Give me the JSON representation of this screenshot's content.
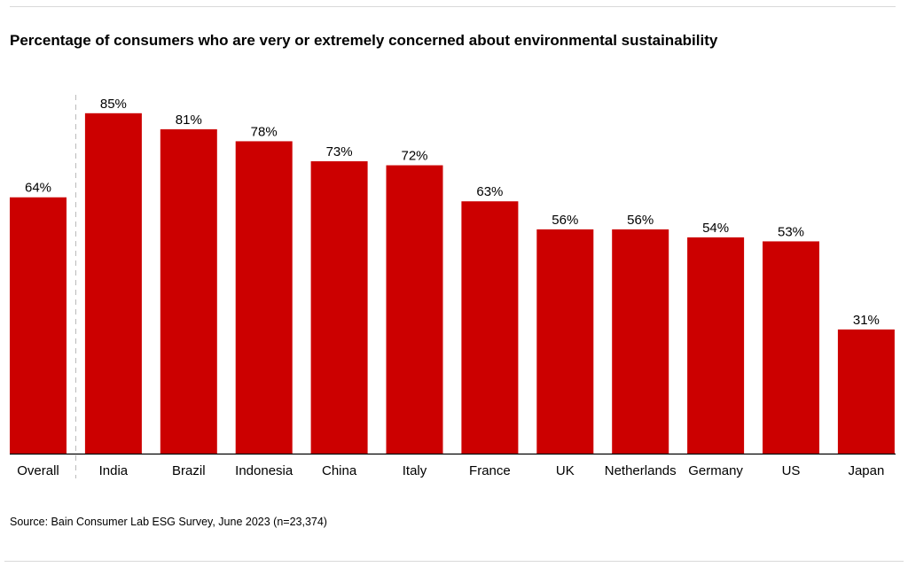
{
  "chart_data": {
    "type": "bar",
    "title": "Percentage of consumers who are very or extremely concerned about environmental sustainability",
    "categories": [
      "Overall",
      "India",
      "Brazil",
      "Indonesia",
      "China",
      "Italy",
      "France",
      "UK",
      "Netherlands",
      "Germany",
      "US",
      "Japan"
    ],
    "values": [
      64,
      85,
      81,
      78,
      73,
      72,
      63,
      56,
      56,
      54,
      53,
      31
    ],
    "data_labels": [
      "64%",
      "85%",
      "81%",
      "78%",
      "73%",
      "72%",
      "63%",
      "56%",
      "56%",
      "54%",
      "53%",
      "31%"
    ],
    "unit": "%",
    "ylim": [
      0,
      100
    ],
    "grid": false,
    "separator_after": "Overall",
    "bar_color": "#cc0000",
    "source": "Source: Bain Consumer Lab ESG Survey, June 2023 (n=23,374)"
  }
}
